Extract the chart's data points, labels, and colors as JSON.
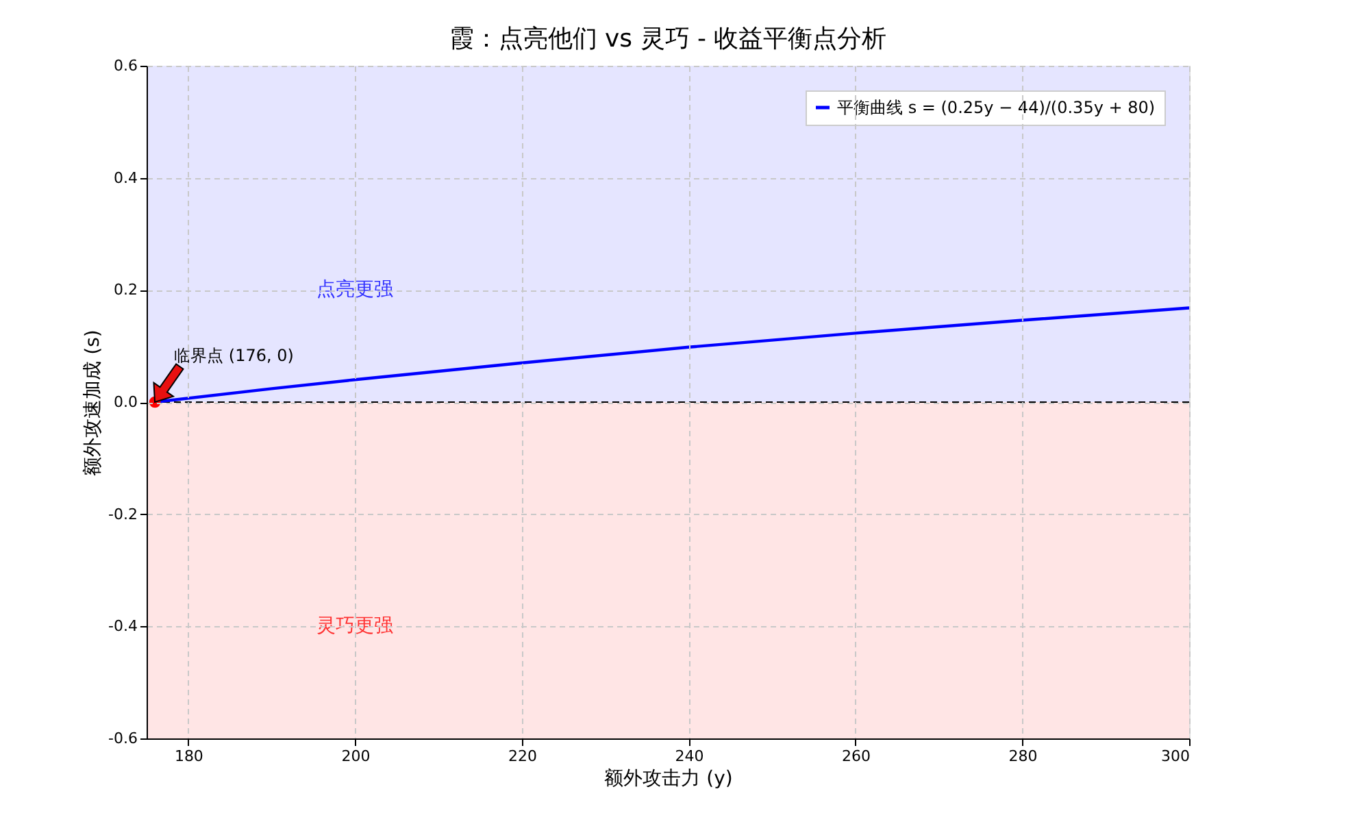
{
  "chart_data": {
    "type": "line",
    "title": "霞：点亮他们 vs 灵巧 - 收益平衡点分析",
    "xlabel": "额外攻击力 (y)",
    "ylabel": "额外攻速加成 (s)",
    "x": [
      176,
      190,
      200,
      220,
      240,
      260,
      280,
      300
    ],
    "series": [
      {
        "name": "平衡曲线 s = (0.25y − 44)/(0.35y + 80)",
        "color": "#0000ff",
        "values": [
          0,
          0.024,
          0.04,
          0.07,
          0.098,
          0.123,
          0.146,
          0.168
        ]
      },
      {
        "type": "scatter",
        "color": "#ff0000",
        "x": [
          176
        ],
        "values": [
          0
        ]
      }
    ],
    "xlim": [
      175,
      300
    ],
    "xticks": [
      180,
      200,
      220,
      240,
      260,
      280,
      300
    ],
    "ylim": [
      -0.6,
      0.6
    ],
    "yticks": [
      {
        "value": -0.6,
        "label": "-0.6"
      },
      {
        "value": -0.4,
        "label": "-0.4"
      },
      {
        "value": -0.2,
        "label": "-0.2"
      },
      {
        "value": 0,
        "label": "0.0"
      },
      {
        "value": 0.2,
        "label": "0.2"
      },
      {
        "value": 0.4,
        "label": "0.4"
      },
      {
        "value": 0.6,
        "label": "0.6"
      }
    ],
    "bands": [
      {
        "axis": "y",
        "from": 0,
        "to": 0.6,
        "color": "#e5e5ff",
        "label": "点亮更强"
      },
      {
        "axis": "y",
        "from": -0.6,
        "to": 0,
        "color": "#ffe5e5",
        "label": "灵巧更强"
      }
    ],
    "ref_lines": [
      {
        "axis": "y",
        "value": 0,
        "color": "#000000",
        "line_style": "dashed"
      }
    ],
    "annotations": [
      {
        "text": "临界点 (176, 0)",
        "x": 176,
        "y": 0
      }
    ],
    "grid": true,
    "legend": "top right",
    "line_style": "solid"
  }
}
